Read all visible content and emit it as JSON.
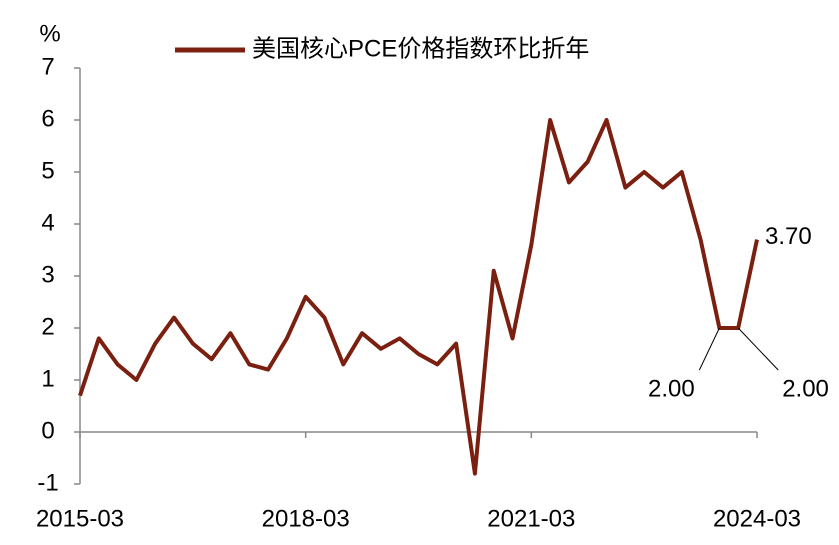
{
  "chart_data": {
    "type": "line",
    "unit": "%",
    "categories": [
      "2015-03",
      null,
      null,
      null,
      null,
      null,
      null,
      null,
      null,
      null,
      null,
      null,
      "2018-03",
      null,
      null,
      null,
      null,
      null,
      null,
      null,
      null,
      null,
      null,
      null,
      "2021-03",
      null,
      null,
      null,
      null,
      null,
      null,
      null,
      null,
      null,
      null,
      null,
      "2024-03"
    ],
    "series": [
      {
        "name": "美国核心PCE价格指数环比折年",
        "color": "#7b2010",
        "values": [
          0.7,
          1.8,
          1.3,
          1.0,
          1.7,
          2.2,
          1.7,
          1.4,
          1.9,
          1.3,
          1.2,
          1.8,
          2.6,
          2.2,
          1.3,
          1.9,
          1.6,
          1.8,
          1.5,
          1.3,
          1.7,
          -0.8,
          3.1,
          1.8,
          3.6,
          6.0,
          4.8,
          5.2,
          6.0,
          4.7,
          5.0,
          4.7,
          5.0,
          3.7,
          2.0,
          2.0,
          3.7
        ],
        "value_labels": [
          null,
          null,
          null,
          null,
          null,
          null,
          null,
          null,
          null,
          null,
          null,
          null,
          null,
          null,
          null,
          null,
          null,
          null,
          null,
          null,
          null,
          null,
          null,
          null,
          null,
          null,
          null,
          null,
          null,
          null,
          null,
          null,
          null,
          null,
          "2.00",
          "2.00",
          "3.70"
        ]
      }
    ],
    "ylim": [
      -1,
      7
    ],
    "yticks": [
      -1,
      0,
      1,
      2,
      3,
      4,
      5,
      6,
      7
    ],
    "grid": false
  }
}
